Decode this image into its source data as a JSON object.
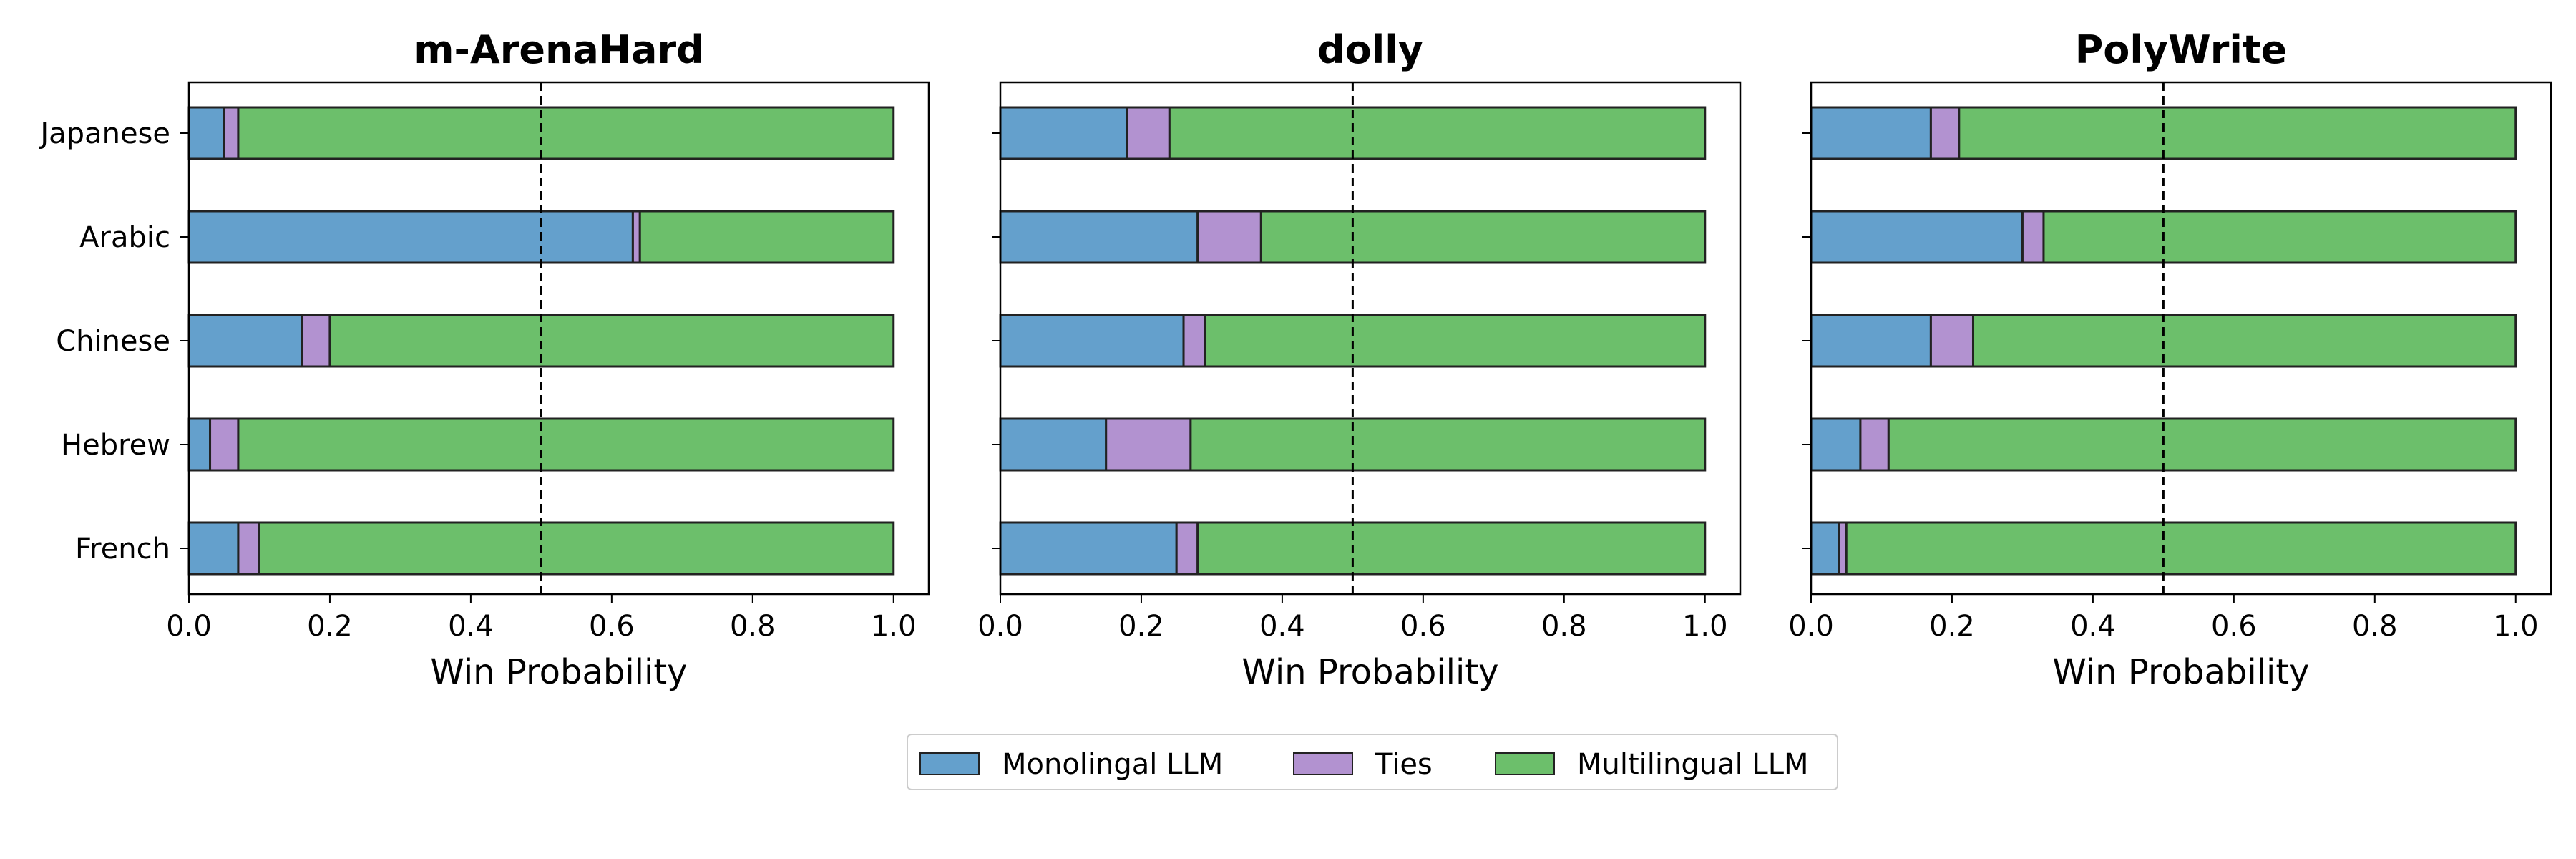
{
  "chart_data": [
    {
      "type": "bar",
      "orientation": "horizontal",
      "stacked": true,
      "title": "m-ArenaHard",
      "xlabel": "Win Probability",
      "ylabel": "",
      "xlim": [
        0,
        1.05
      ],
      "xticks": [
        "0.0",
        "0.2",
        "0.4",
        "0.6",
        "0.8",
        "1.0"
      ],
      "reference_line": 0.5,
      "categories": [
        "Japanese",
        "Arabic",
        "Chinese",
        "Hebrew",
        "French"
      ],
      "series": [
        {
          "name": "Monolingal LLM",
          "values": [
            0.05,
            0.63,
            0.16,
            0.03,
            0.07
          ]
        },
        {
          "name": "Ties",
          "values": [
            0.02,
            0.01,
            0.04,
            0.04,
            0.03
          ]
        },
        {
          "name": "Multilingual LLM",
          "values": [
            0.93,
            0.36,
            0.8,
            0.93,
            0.9
          ]
        }
      ]
    },
    {
      "type": "bar",
      "orientation": "horizontal",
      "stacked": true,
      "title": "dolly",
      "xlabel": "Win Probability",
      "ylabel": "",
      "xlim": [
        0,
        1.05
      ],
      "xticks": [
        "0.0",
        "0.2",
        "0.4",
        "0.6",
        "0.8",
        "1.0"
      ],
      "reference_line": 0.5,
      "categories": [
        "Japanese",
        "Arabic",
        "Chinese",
        "Hebrew",
        "French"
      ],
      "series": [
        {
          "name": "Monolingal LLM",
          "values": [
            0.18,
            0.28,
            0.26,
            0.15,
            0.25
          ]
        },
        {
          "name": "Ties",
          "values": [
            0.06,
            0.09,
            0.03,
            0.12,
            0.03
          ]
        },
        {
          "name": "Multilingual LLM",
          "values": [
            0.76,
            0.63,
            0.71,
            0.73,
            0.72
          ]
        }
      ]
    },
    {
      "type": "bar",
      "orientation": "horizontal",
      "stacked": true,
      "title": "PolyWrite",
      "xlabel": "Win Probability",
      "ylabel": "",
      "xlim": [
        0,
        1.05
      ],
      "xticks": [
        "0.0",
        "0.2",
        "0.4",
        "0.6",
        "0.8",
        "1.0"
      ],
      "reference_line": 0.5,
      "categories": [
        "Japanese",
        "Arabic",
        "Chinese",
        "Hebrew",
        "French"
      ],
      "series": [
        {
          "name": "Monolingal LLM",
          "values": [
            0.17,
            0.3,
            0.17,
            0.07,
            0.04
          ]
        },
        {
          "name": "Ties",
          "values": [
            0.04,
            0.03,
            0.06,
            0.04,
            0.01
          ]
        },
        {
          "name": "Multilingual LLM",
          "values": [
            0.79,
            0.67,
            0.77,
            0.89,
            0.95
          ]
        }
      ]
    }
  ],
  "legend": {
    "position": "bottom-center",
    "items": [
      {
        "label": "Monolingal LLM",
        "color": "#64a0cc"
      },
      {
        "label": "Ties",
        "color": "#b292d0"
      },
      {
        "label": "Multilingual LLM",
        "color": "#6cbf6b"
      }
    ]
  },
  "colors": {
    "Monolingal LLM": "#64a0cc",
    "Ties": "#b292d0",
    "Multilingual LLM": "#6cbf6b",
    "bar_edge": "#222222",
    "reference_line": "#000000"
  }
}
